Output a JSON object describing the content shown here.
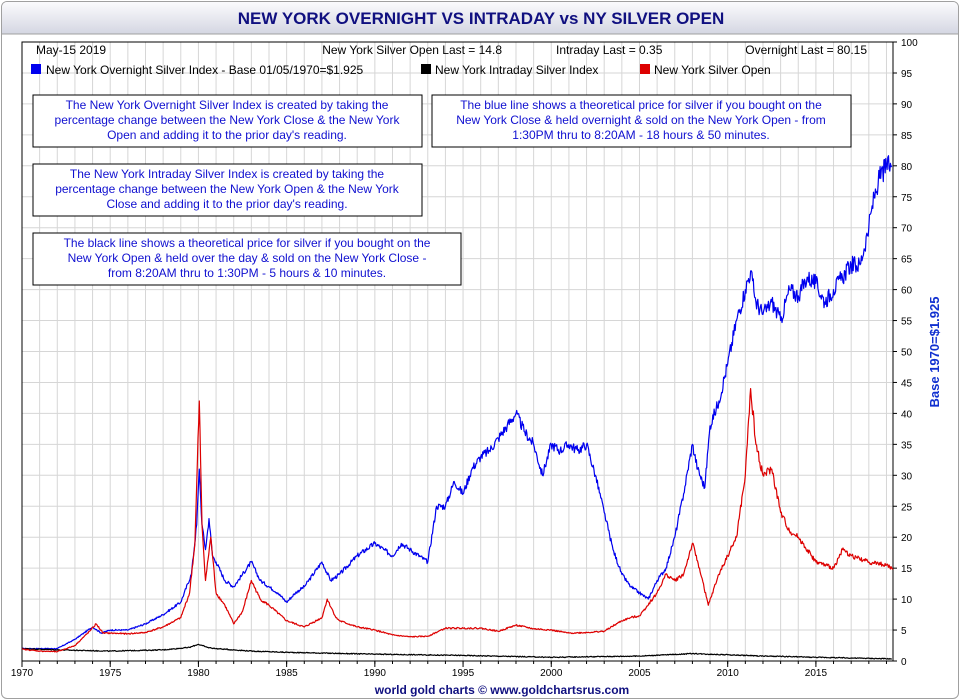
{
  "chart_data": {
    "type": "line",
    "title": "NEW YORK OVERNIGHT VS INTRADAY vs NY SILVER OPEN",
    "date_label": "May-15  2019",
    "last_values": [
      {
        "label": "New York Silver Open Last = 14.8"
      },
      {
        "label": "Intraday Last = 0.35"
      },
      {
        "label": "Overnight Last = 80.15"
      }
    ],
    "legend_position": "top-left",
    "ylabel": "Base 1970=$1.925",
    "ylim": [
      0,
      100
    ],
    "y_ticks": [
      0,
      5,
      10,
      15,
      20,
      25,
      30,
      35,
      40,
      45,
      50,
      55,
      60,
      65,
      70,
      75,
      80,
      85,
      90,
      95,
      100
    ],
    "xlim": [
      1970,
      2019.37
    ],
    "x_ticks": [
      1970,
      1975,
      1980,
      1985,
      1990,
      1995,
      2000,
      2005,
      2010,
      2015
    ],
    "grid": true,
    "notes": [
      {
        "lines": [
          "The New York Overnight Silver Index is created by taking the",
          "percentage change between the New York Close & the New York",
          "Open and adding it to the prior day's reading."
        ]
      },
      {
        "lines": [
          "The blue line shows a theoretical price for silver if you bought on the",
          "New York Close & held overnight & sold on the New York Open - from",
          "1:30PM thru to 8:20AM - 18 hours & 50 minutes."
        ]
      },
      {
        "lines": [
          "The New York Intraday Silver Index is created by taking the",
          "percentage change between the New York Open & the New York",
          "Close and adding it to the prior day's reading."
        ]
      },
      {
        "lines": [
          "The black line shows a theoretical price for silver if you bought on the",
          "New York Open & held over the day & sold on the New York Close -",
          "from 8:20AM thru to 1:30PM - 5 hours & 10 minutes."
        ]
      }
    ],
    "footer": "world gold charts © www.goldchartsrus.com",
    "series": [
      {
        "name": "New York Overnight Silver Index - Base 01/05/1970=$1.925",
        "color": "#0000ee",
        "x": [
          1970,
          1972,
          1973,
          1973.5,
          1974,
          1974.5,
          1975,
          1976,
          1977,
          1978,
          1979,
          1979.6,
          1979.9,
          1980.05,
          1980.2,
          1980.4,
          1980.6,
          1980.8,
          1981,
          1981.5,
          1982,
          1982.5,
          1983,
          1983.5,
          1984,
          1984.5,
          1985,
          1985.5,
          1986,
          1987,
          1987.5,
          1988,
          1989,
          1990,
          1990.5,
          1991,
          1991.5,
          1992,
          1993,
          1993.5,
          1994,
          1994.5,
          1995,
          1995.5,
          1996,
          1996.5,
          1997,
          1997.5,
          1998,
          1998.5,
          1999,
          1999.5,
          2000,
          2000.5,
          2001,
          2001.5,
          2002,
          2002.5,
          2003,
          2003.5,
          2004,
          2004.5,
          2005,
          2005.5,
          2006,
          2006.5,
          2007,
          2007.5,
          2008,
          2008.3,
          2008.7,
          2009,
          2009.5,
          2010,
          2010.5,
          2011,
          2011.3,
          2011.6,
          2012,
          2012.5,
          2013,
          2013.5,
          2014,
          2014.5,
          2015,
          2015.5,
          2016,
          2016.5,
          2017,
          2017.5,
          2018,
          2018.3,
          2018.6,
          2019,
          2019.3
        ],
        "y": [
          2,
          2,
          3.5,
          4.5,
          5.5,
          4.5,
          5,
          5,
          6,
          7.5,
          9.5,
          14,
          22,
          31,
          22,
          18,
          23,
          17,
          16,
          13,
          12,
          14,
          16,
          13,
          12,
          11,
          9.5,
          11,
          12,
          16,
          13,
          14,
          17,
          19,
          18,
          17,
          19,
          18,
          16,
          25,
          25,
          29,
          27,
          31,
          33,
          34,
          36,
          38,
          40,
          37,
          35,
          30,
          35,
          34,
          35,
          34,
          35,
          30,
          24,
          18,
          14,
          12,
          11,
          10,
          13,
          15,
          20,
          27,
          35,
          31,
          28,
          38,
          42,
          48,
          55,
          60,
          63,
          58,
          56,
          58,
          55,
          60,
          59,
          62,
          61,
          58,
          60,
          62,
          64,
          64,
          70,
          75,
          78,
          80,
          80
        ]
      },
      {
        "name": "New York Intraday Silver Index",
        "color": "#000000",
        "x": [
          1970,
          1972,
          1975,
          1978,
          1979.5,
          1980,
          1980.5,
          1981,
          1983,
          1985,
          1990,
          1995,
          2000,
          2005,
          2008,
          2010,
          2012,
          2015,
          2019.3
        ],
        "y": [
          2,
          1.8,
          1.6,
          1.8,
          2.2,
          2.7,
          2.2,
          2,
          1.6,
          1.4,
          1.1,
          0.9,
          0.6,
          0.8,
          1.2,
          1,
          0.8,
          0.6,
          0.35
        ]
      },
      {
        "name": "New York Silver Open",
        "color": "#dd0000",
        "x": [
          1970,
          1971,
          1972,
          1973,
          1973.9,
          1974.2,
          1974.6,
          1975,
          1976,
          1977,
          1978,
          1979,
          1979.5,
          1979.8,
          1980.05,
          1980.2,
          1980.4,
          1980.7,
          1981,
          1981.5,
          1982,
          1982.5,
          1983,
          1983.5,
          1984,
          1985,
          1986,
          1987,
          1987.3,
          1987.8,
          1988,
          1989,
          1990,
          1991,
          1992,
          1993,
          1994,
          1995,
          1996,
          1997,
          1998,
          1999,
          2000,
          2001,
          2002,
          2003,
          2004,
          2004.5,
          2005,
          2006,
          2006.5,
          2007,
          2007.5,
          2008,
          2008.4,
          2008.9,
          2009.5,
          2010,
          2010.5,
          2011,
          2011.3,
          2011.6,
          2012,
          2012.5,
          2013,
          2013.5,
          2014,
          2015,
          2016,
          2016.5,
          2017,
          2018,
          2019,
          2019.37
        ],
        "y": [
          1.9,
          1.6,
          1.5,
          2.5,
          5,
          6,
          4.5,
          4.5,
          4.4,
          4.6,
          5.5,
          7,
          11,
          19,
          42,
          22,
          13,
          20,
          11,
          9,
          6,
          8,
          13,
          10,
          9,
          6.5,
          5.5,
          7,
          10,
          7,
          6.5,
          5.5,
          5,
          4.2,
          3.9,
          4,
          5.3,
          5.3,
          5.3,
          4.8,
          5.8,
          5.2,
          5,
          4.5,
          4.6,
          4.8,
          6.5,
          7,
          7.3,
          11,
          14,
          13,
          14,
          19,
          15,
          9,
          14,
          17,
          20,
          30,
          44,
          35,
          30,
          31,
          24,
          21,
          20,
          16,
          15,
          18,
          17,
          16,
          15.5,
          14.8
        ]
      }
    ]
  }
}
